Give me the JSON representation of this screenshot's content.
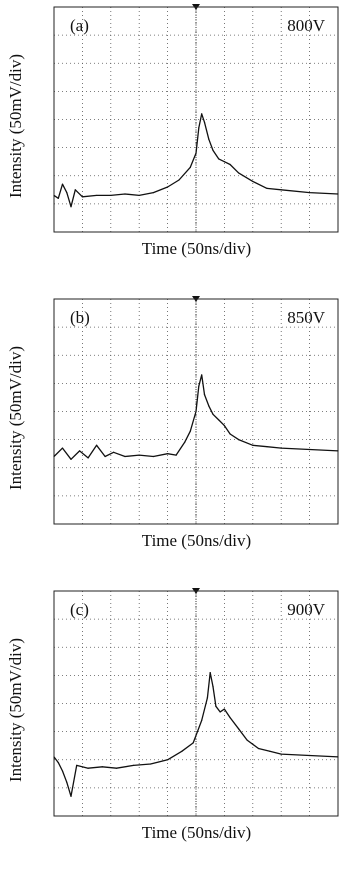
{
  "chart_data": [
    {
      "type": "line",
      "panel_label": "(a)",
      "annotation": "800V",
      "xlabel": "Time (50ns/div)",
      "ylabel": "Intensity (50mV/div)",
      "xlim": [
        0,
        10
      ],
      "ylim": [
        0,
        8
      ],
      "grid": true,
      "x": [
        0,
        0.15,
        0.3,
        0.45,
        0.6,
        0.75,
        1.0,
        1.5,
        2.0,
        2.5,
        3.0,
        3.5,
        4.0,
        4.4,
        4.8,
        5.0,
        5.1,
        5.2,
        5.3,
        5.45,
        5.6,
        5.8,
        6.0,
        6.2,
        6.5,
        7.0,
        7.5,
        8.0,
        9.0,
        10.0
      ],
      "y": [
        1.3,
        1.2,
        1.7,
        1.4,
        0.9,
        1.5,
        1.25,
        1.3,
        1.3,
        1.35,
        1.3,
        1.4,
        1.6,
        1.85,
        2.3,
        2.8,
        3.7,
        4.2,
        3.9,
        3.3,
        2.9,
        2.6,
        2.5,
        2.4,
        2.1,
        1.8,
        1.55,
        1.5,
        1.4,
        1.35
      ]
    },
    {
      "type": "line",
      "panel_label": "(b)",
      "annotation": "850V",
      "xlabel": "Time (50ns/div)",
      "ylabel": "Intensity (50mV/div)",
      "xlim": [
        0,
        10
      ],
      "ylim": [
        0,
        8
      ],
      "grid": true,
      "x": [
        0,
        0.3,
        0.6,
        0.9,
        1.2,
        1.5,
        1.8,
        2.1,
        2.5,
        3.0,
        3.5,
        4.0,
        4.3,
        4.6,
        4.8,
        5.0,
        5.1,
        5.2,
        5.3,
        5.45,
        5.6,
        5.8,
        6.0,
        6.2,
        6.5,
        7.0,
        7.5,
        8.0,
        9.0,
        10.0
      ],
      "y": [
        2.4,
        2.7,
        2.3,
        2.6,
        2.35,
        2.8,
        2.4,
        2.55,
        2.4,
        2.45,
        2.4,
        2.5,
        2.45,
        2.9,
        3.3,
        4.0,
        4.9,
        5.3,
        4.6,
        4.2,
        3.9,
        3.7,
        3.5,
        3.2,
        3.0,
        2.8,
        2.75,
        2.7,
        2.65,
        2.6
      ]
    },
    {
      "type": "line",
      "panel_label": "(c)",
      "annotation": "900V",
      "xlabel": "Time (50ns/div)",
      "ylabel": "Intensity (50mV/div)",
      "xlim": [
        0,
        10
      ],
      "ylim": [
        0,
        8
      ],
      "grid": true,
      "x": [
        0,
        0.15,
        0.3,
        0.45,
        0.6,
        0.8,
        1.2,
        1.7,
        2.2,
        2.8,
        3.4,
        4.0,
        4.5,
        4.9,
        5.2,
        5.4,
        5.5,
        5.6,
        5.7,
        5.85,
        6.0,
        6.2,
        6.5,
        6.8,
        7.2,
        7.6,
        8.0,
        9.0,
        10.0
      ],
      "y": [
        2.1,
        1.9,
        1.6,
        1.2,
        0.7,
        1.8,
        1.7,
        1.75,
        1.7,
        1.8,
        1.85,
        2.0,
        2.3,
        2.6,
        3.4,
        4.2,
        5.1,
        4.6,
        3.9,
        3.7,
        3.8,
        3.5,
        3.1,
        2.7,
        2.4,
        2.3,
        2.2,
        2.15,
        2.1
      ]
    }
  ]
}
